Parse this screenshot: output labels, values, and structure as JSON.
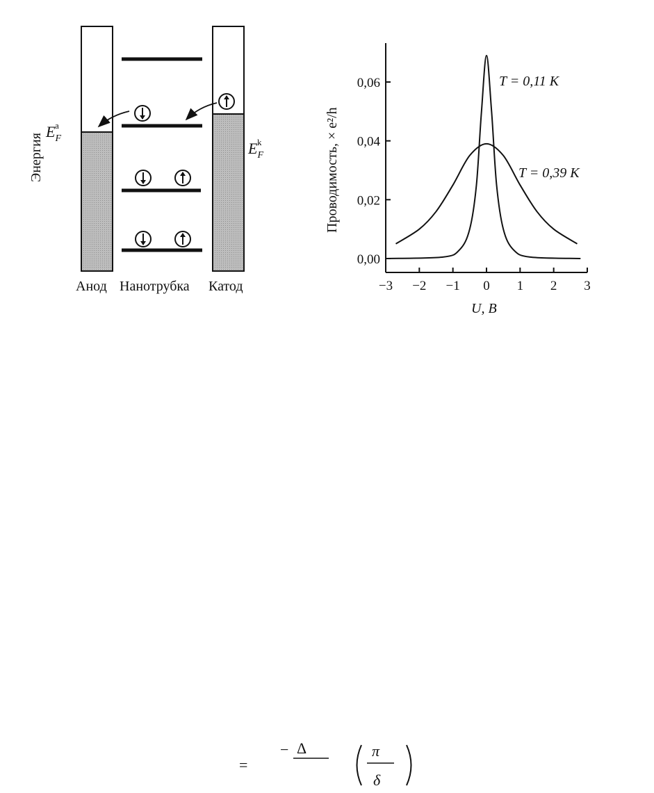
{
  "left_diagram": {
    "ylabel": "Энергия",
    "fermi_anode": {
      "base": "E",
      "sub": "F",
      "sup": "a"
    },
    "fermi_cathode": {
      "base": "E",
      "sub": "F",
      "sup": "k"
    },
    "bottom_labels": [
      "Анод",
      "Нанотрубка",
      "Катод"
    ]
  },
  "chart_data": {
    "type": "line",
    "xlabel": "U, В",
    "ylabel": "Проводимость, × e²/h",
    "xlim": [
      -3,
      3
    ],
    "ylim": [
      0,
      0.07
    ],
    "x_ticks": [
      "−3",
      "−2",
      "−1",
      "0",
      "1",
      "2",
      "3"
    ],
    "y_ticks": [
      "0,00",
      "0,02",
      "0,04",
      "0,06"
    ],
    "series": [
      {
        "name": "T = 0,11 K",
        "x": [
          -3.0,
          -1.3,
          -0.8,
          -0.5,
          -0.3,
          -0.15,
          0.0,
          0.15,
          0.3,
          0.5,
          0.8,
          1.3,
          2.8
        ],
        "y": [
          0.0,
          0.0005,
          0.003,
          0.01,
          0.025,
          0.05,
          0.069,
          0.05,
          0.025,
          0.01,
          0.003,
          0.0005,
          0.0
        ]
      },
      {
        "name": "T = 0,39 K",
        "x": [
          -2.7,
          -2.0,
          -1.5,
          -1.0,
          -0.5,
          0.0,
          0.5,
          1.0,
          1.5,
          2.0,
          2.7
        ],
        "y": [
          0.005,
          0.01,
          0.016,
          0.025,
          0.035,
          0.039,
          0.035,
          0.025,
          0.016,
          0.01,
          0.005
        ]
      }
    ],
    "grid": false
  },
  "formula": {
    "equals": "=",
    "minus": "−",
    "delta": "Δ",
    "pi": "π",
    "small_delta": "δ"
  }
}
